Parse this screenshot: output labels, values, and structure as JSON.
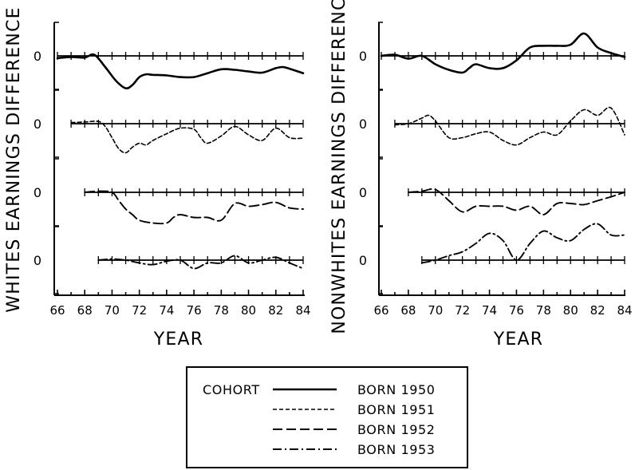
{
  "chart_data": [
    {
      "type": "line",
      "panel": "whites",
      "ylabel": "WHITES EARNINGS DIFFERENCE",
      "xlabel": "YEAR",
      "xlim": [
        66,
        84
      ],
      "x_ticks": [
        "66",
        "68",
        "70",
        "72",
        "74",
        "76",
        "78",
        "80",
        "82",
        "84"
      ],
      "baseline_label": "0",
      "series": [
        {
          "name": "BORN 1950",
          "dash": "solid",
          "x": [
            66,
            67,
            68,
            68.7,
            69.5,
            70.3,
            71,
            71.5,
            72,
            72.5,
            73,
            74,
            75,
            76,
            77,
            78,
            79,
            80,
            81,
            82,
            82.5,
            83,
            84
          ],
          "y": [
            -0.04,
            -0.02,
            -0.03,
            0.02,
            -0.2,
            -0.45,
            -0.58,
            -0.52,
            -0.38,
            -0.33,
            -0.34,
            -0.35,
            -0.38,
            -0.38,
            -0.31,
            -0.24,
            -0.25,
            -0.28,
            -0.3,
            -0.22,
            -0.2,
            -0.23,
            -0.31
          ]
        },
        {
          "name": "BORN 1951",
          "dash": "short",
          "x": [
            67,
            68,
            69,
            69.5,
            70,
            70.5,
            71,
            71.5,
            72,
            72.5,
            73,
            74,
            75,
            76,
            76.5,
            77,
            78,
            79,
            80,
            81,
            82,
            83,
            84
          ],
          "y": [
            0.02,
            0.03,
            0.04,
            -0.05,
            -0.25,
            -0.45,
            -0.52,
            -0.42,
            -0.35,
            -0.38,
            -0.3,
            -0.18,
            -0.08,
            -0.1,
            -0.25,
            -0.35,
            -0.22,
            -0.05,
            -0.2,
            -0.3,
            -0.08,
            -0.25,
            -0.26
          ]
        },
        {
          "name": "BORN 1952",
          "dash": "long",
          "x": [
            68,
            69,
            70,
            70.5,
            71,
            71.5,
            72,
            73,
            74,
            74.5,
            75,
            76,
            77,
            78,
            79,
            80,
            81,
            82,
            83,
            84
          ],
          "y": [
            0.0,
            0.02,
            0.0,
            -0.15,
            -0.3,
            -0.4,
            -0.5,
            -0.55,
            -0.55,
            -0.45,
            -0.4,
            -0.45,
            -0.45,
            -0.5,
            -0.2,
            -0.25,
            -0.22,
            -0.18,
            -0.28,
            -0.3
          ]
        },
        {
          "name": "BORN 1953",
          "dash": "dashdot",
          "x": [
            69,
            70,
            71,
            72,
            73,
            74,
            75,
            76,
            77,
            78,
            79,
            80,
            81,
            82,
            83,
            84
          ],
          "y": [
            0.0,
            0.02,
            0.0,
            -0.05,
            -0.08,
            -0.02,
            0.0,
            -0.15,
            -0.05,
            -0.05,
            0.08,
            -0.05,
            0.0,
            0.05,
            -0.05,
            -0.15
          ]
        }
      ]
    },
    {
      "type": "line",
      "panel": "nonwhites",
      "ylabel": "NONWHITES EARNINGS DIFFERENCE",
      "xlabel": "YEAR",
      "xlim": [
        66,
        84
      ],
      "x_ticks": [
        "66",
        "68",
        "70",
        "72",
        "74",
        "76",
        "78",
        "80",
        "82",
        "84"
      ],
      "baseline_label": "0",
      "series": [
        {
          "name": "BORN 1950",
          "dash": "solid",
          "x": [
            66,
            67,
            68,
            69,
            70,
            71,
            72,
            72.5,
            73,
            74,
            75,
            76,
            77,
            78,
            79,
            80,
            81,
            82,
            83,
            84
          ],
          "y": [
            0.0,
            0.02,
            -0.05,
            0.0,
            -0.15,
            -0.25,
            -0.3,
            -0.22,
            -0.15,
            -0.22,
            -0.22,
            -0.08,
            0.15,
            0.18,
            0.18,
            0.2,
            0.4,
            0.15,
            0.05,
            -0.02
          ]
        },
        {
          "name": "BORN 1951",
          "dash": "short",
          "x": [
            67,
            68,
            69,
            69.5,
            70,
            71,
            72,
            73,
            74,
            75,
            76,
            77,
            78,
            79,
            80,
            81,
            82,
            83,
            84
          ],
          "y": [
            -0.02,
            0.0,
            0.1,
            0.15,
            0.05,
            -0.25,
            -0.25,
            -0.18,
            -0.15,
            -0.3,
            -0.38,
            -0.25,
            -0.15,
            -0.2,
            0.05,
            0.25,
            0.15,
            0.28,
            -0.2
          ]
        },
        {
          "name": "BORN 1952",
          "dash": "long",
          "x": [
            68,
            69,
            70,
            71,
            72,
            73,
            74,
            75,
            76,
            77,
            78,
            79,
            80,
            81,
            82,
            83,
            84
          ],
          "y": [
            0.0,
            0.02,
            0.05,
            -0.15,
            -0.35,
            -0.25,
            -0.25,
            -0.25,
            -0.32,
            -0.25,
            -0.4,
            -0.2,
            -0.2,
            -0.22,
            -0.15,
            -0.08,
            0.0
          ]
        },
        {
          "name": "BORN 1953",
          "dash": "dashdot",
          "x": [
            69,
            70,
            71,
            72,
            73,
            74,
            75,
            76,
            77,
            78,
            79,
            80,
            81,
            82,
            83,
            84
          ],
          "y": [
            -0.05,
            0.0,
            0.08,
            0.15,
            0.3,
            0.48,
            0.35,
            0.0,
            0.3,
            0.52,
            0.4,
            0.35,
            0.55,
            0.65,
            0.45,
            0.45
          ]
        }
      ]
    }
  ],
  "legend": {
    "heading": "COHORT",
    "items": [
      {
        "label": "BORN 1950",
        "dash": "solid"
      },
      {
        "label": "BORN 1951",
        "dash": "short"
      },
      {
        "label": "BORN 1952",
        "dash": "long"
      },
      {
        "label": "BORN 1953",
        "dash": "dashdot"
      }
    ]
  }
}
